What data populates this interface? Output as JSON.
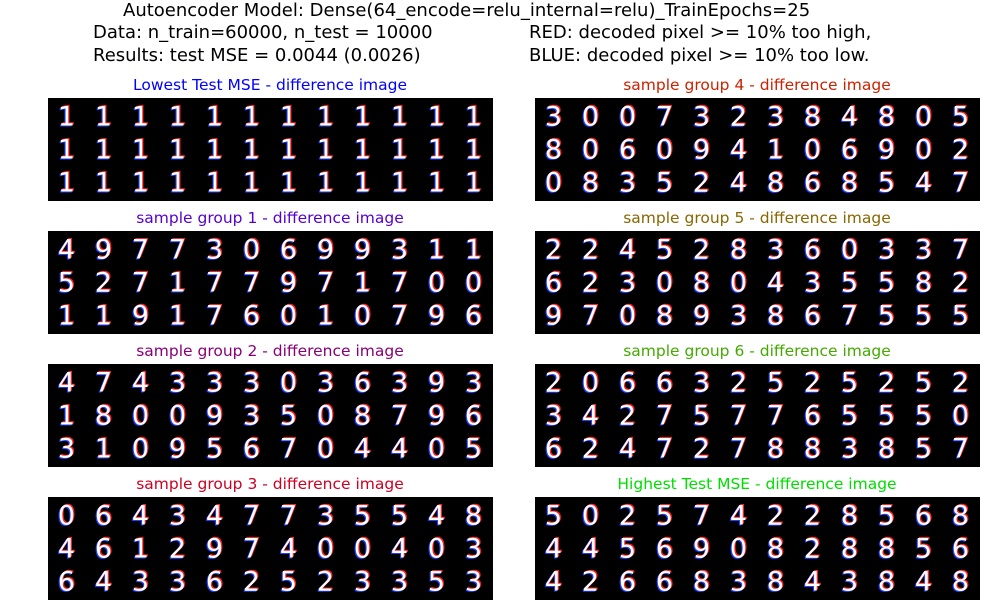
{
  "header": {
    "line1": "Autoencoder Model: Dense(64_encode=relu_internal=relu)_TrainEpochs=25",
    "line2_left": "Data: n_train=60000, n_test = 10000",
    "line3_left": "Results: test MSE = 0.0044 (0.0026)",
    "line2_right": "RED: decoded pixel >= 10% too high,",
    "line3_right": "BLUE: decoded pixel >= 10% too low."
  },
  "colors": {
    "red": "#ff2020",
    "blue": "#2040ff",
    "stroke": "#ffffff",
    "background": "#000000"
  },
  "panels": [
    {
      "title": "Lowest Test MSE - difference image",
      "color": "#0000ff",
      "rows": [
        "111111111111",
        "111111111111",
        "111111111111"
      ]
    },
    {
      "title": "sample group 4 - difference image",
      "color": "#cc2200",
      "rows": [
        "300732384805",
        "806094106902",
        "083524868547"
      ]
    },
    {
      "title": "sample group 1 - difference image",
      "color": "#5500cc",
      "rows": [
        "497730699311",
        "527177971700",
        "119176010796"
      ]
    },
    {
      "title": "sample group 5 - difference image",
      "color": "#886600",
      "rows": [
        "224528360337",
        "623080435582",
        "970893867555"
      ]
    },
    {
      "title": "sample group 2 - difference image",
      "color": "#880077",
      "rows": [
        "474333036393",
        "180093508796",
        "310956704405"
      ]
    },
    {
      "title": "sample group 6 - difference image",
      "color": "#44aa00",
      "rows": [
        "206632525252",
        "342757765550",
        "624727883857"
      ]
    },
    {
      "title": "sample group 3 - difference image",
      "color": "#cc0022",
      "rows": [
        "064347735548",
        "461297400403",
        "643362523353"
      ]
    },
    {
      "title": "Highest Test MSE - difference image",
      "color": "#00dd00",
      "rows": [
        "502574228568",
        "445690828856",
        "426683843848"
      ]
    }
  ],
  "chart_data": {
    "type": "image-grid",
    "title": "Autoencoder Model: Dense(64_encode=relu_internal=relu)_TrainEpochs=25",
    "n_train": 60000,
    "n_test": 10000,
    "test_mse": 0.0044,
    "test_mse_std": 0.0026,
    "panels_per_grid": {
      "rows": 3,
      "digits_per_row": 12
    }
  }
}
